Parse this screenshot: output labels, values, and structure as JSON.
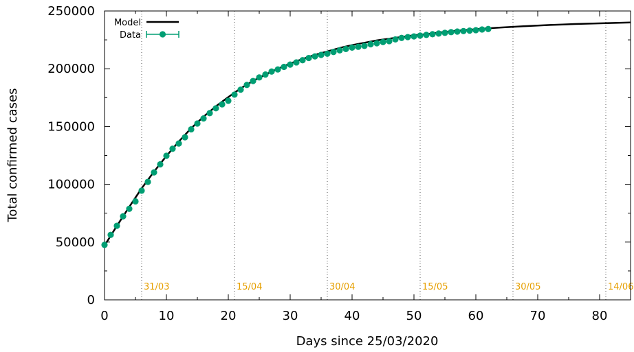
{
  "chart_data": {
    "type": "line",
    "xlabel": "Days since 25/03/2020",
    "ylabel": "Total confirmed cases",
    "xlim": [
      0,
      85
    ],
    "ylim": [
      0,
      250000
    ],
    "x_ticks": [
      0,
      10,
      20,
      30,
      40,
      50,
      60,
      70,
      80
    ],
    "y_ticks": [
      0,
      50000,
      100000,
      150000,
      200000,
      250000
    ],
    "x_tick_labels": [
      "0",
      "10",
      "20",
      "30",
      "40",
      "50",
      "60",
      "70",
      "80"
    ],
    "y_tick_labels": [
      "0",
      "50000",
      "100000",
      "150000",
      "200000",
      "250000"
    ],
    "grid": false,
    "legend_position": "top-left",
    "date_markers": [
      {
        "x": 6,
        "label": "31/03"
      },
      {
        "x": 21,
        "label": "15/04"
      },
      {
        "x": 36,
        "label": "30/04"
      },
      {
        "x": 51,
        "label": "15/05"
      },
      {
        "x": 66,
        "label": "30/05"
      },
      {
        "x": 81,
        "label": "14/06"
      }
    ],
    "colors": {
      "model": "#000000",
      "data": "#009e73",
      "marker": "#e69f00"
    },
    "series": [
      {
        "name": "Model",
        "style": "line",
        "x": [
          0,
          2,
          4,
          6,
          8,
          10,
          12,
          14,
          16,
          18,
          20,
          22,
          24,
          26,
          28,
          30,
          32,
          34,
          36,
          38,
          40,
          42,
          44,
          46,
          48,
          50,
          52,
          54,
          56,
          58,
          60,
          62,
          64,
          66,
          68,
          70,
          72,
          74,
          76,
          78,
          80,
          82,
          85
        ],
        "values": [
          47000,
          64000,
          80500,
          96500,
          111000,
          124500,
          137000,
          148500,
          158500,
          167500,
          175500,
          183000,
          189500,
          195000,
          200000,
          204500,
          208500,
          212000,
          215000,
          218000,
          220500,
          222500,
          224500,
          226000,
          227500,
          229000,
          230000,
          231300,
          232400,
          233400,
          234200,
          235000,
          235700,
          236300,
          236900,
          237400,
          237900,
          238300,
          238700,
          239000,
          239300,
          239600,
          240000
        ]
      },
      {
        "name": "Data",
        "style": "points-with-errorbars",
        "x": [
          0,
          1,
          2,
          3,
          4,
          5,
          6,
          7,
          8,
          9,
          10,
          11,
          12,
          13,
          14,
          15,
          16,
          17,
          18,
          19,
          20,
          21,
          22,
          23,
          24,
          25,
          26,
          27,
          28,
          29,
          30,
          31,
          32,
          33,
          34,
          35,
          36,
          37,
          38,
          39,
          40,
          41,
          42,
          43,
          44,
          45,
          46,
          47,
          48,
          49,
          50,
          51,
          52,
          53,
          54,
          55,
          56,
          57,
          58,
          59,
          60,
          61,
          62
        ],
        "values": [
          47600,
          56300,
          64100,
          72300,
          78800,
          85200,
          94500,
          102100,
          110300,
          117300,
          124700,
          130800,
          135300,
          140700,
          147600,
          152600,
          157000,
          161600,
          165800,
          169200,
          172300,
          177600,
          181900,
          186000,
          189400,
          192500,
          195000,
          197600,
          199400,
          201600,
          203600,
          205500,
          207400,
          209300,
          210700,
          212000,
          213000,
          214500,
          215900,
          217100,
          218300,
          219000,
          219800,
          221200,
          222100,
          223100,
          223900,
          225400,
          226700,
          227400,
          228000,
          228700,
          229300,
          229900,
          230500,
          231100,
          231700,
          232200,
          232600,
          233000,
          233400,
          234000,
          234400
        ]
      }
    ]
  }
}
